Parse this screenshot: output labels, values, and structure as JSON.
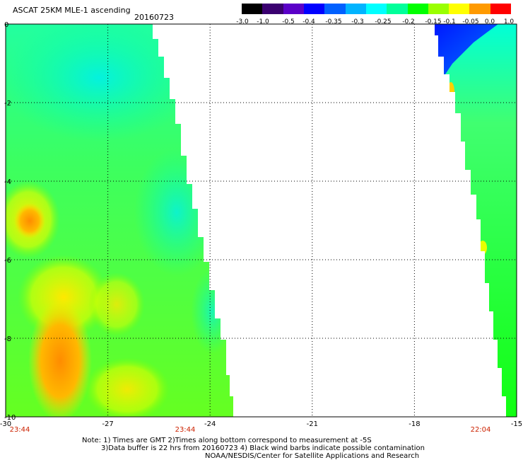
{
  "header": {
    "title": "ASCAT 25KM MLE-1 ascending",
    "date": "20160723"
  },
  "colorbar": {
    "labels": [
      "-3.0",
      "-1.0",
      "-0.5",
      "-0.4",
      "-0.35",
      "-0.3",
      "-0.25",
      "-0.2",
      "-0.15",
      "-0.1",
      "-0.05",
      "0.0",
      "1.0"
    ],
    "colors": [
      "#000000",
      "#3a0070",
      "#5a00c8",
      "#0000ff",
      "#0060ff",
      "#00b4ff",
      "#00ffff",
      "#00ff9a",
      "#00ff00",
      "#9aff00",
      "#ffff00",
      "#ff9a00",
      "#ff0000"
    ]
  },
  "map": {
    "x_ticks": [
      "-30",
      "-27",
      "-24",
      "-21",
      "-18",
      "-15"
    ],
    "y_ticks": [
      "0",
      "-2",
      "-4",
      "-6",
      "-8",
      "-10"
    ],
    "time_labels": [
      "23:44",
      "23:44",
      "22:04"
    ]
  },
  "notes": {
    "line1": "Note: 1) Times are GMT 2)Times along bottom correspond to measurement at -5S",
    "line2": "3)Data buffer is 22 hrs from 20160723 4) Black wind barbs indicate possible contamination",
    "line3": "NOAA/NESDIS/Center for Satellite Applications and Research"
  }
}
